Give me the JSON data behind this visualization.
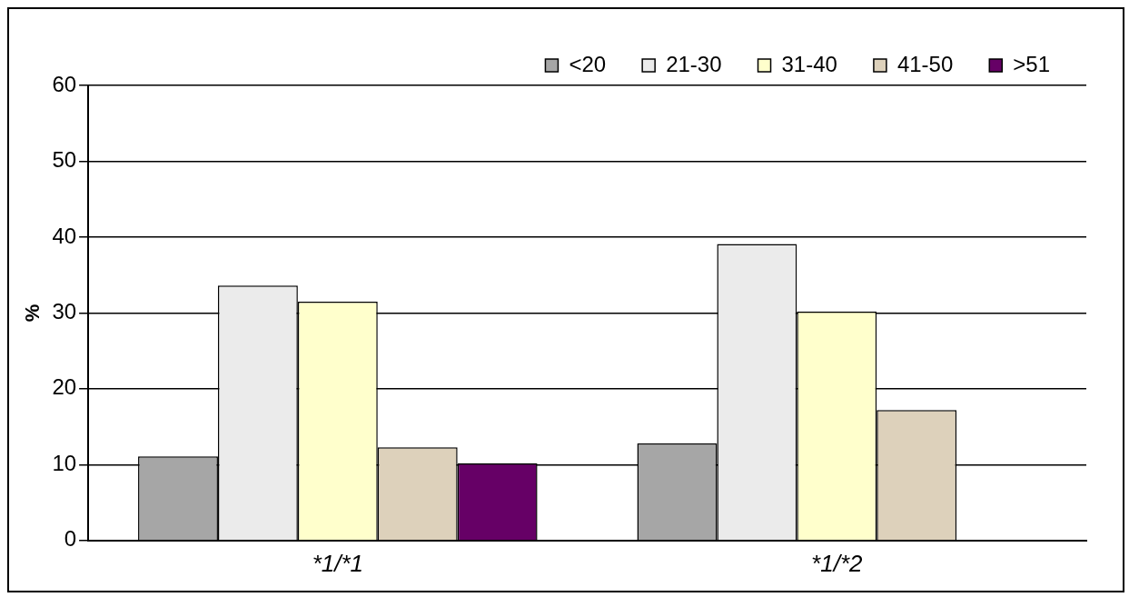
{
  "chart_data": {
    "type": "bar",
    "ylabel": "%",
    "categories": [
      "*1/*1",
      "*1/*2"
    ],
    "series": [
      {
        "name": "<20",
        "color": "#a6a6a6",
        "values": [
          11.1,
          12.8
        ]
      },
      {
        "name": "21-30",
        "color": "#ebebeb",
        "values": [
          33.6,
          39.1
        ]
      },
      {
        "name": "31-40",
        "color": "#ffffcc",
        "values": [
          31.5,
          30.2
        ]
      },
      {
        "name": "41-50",
        "color": "#ddd1bb",
        "values": [
          12.3,
          17.2
        ]
      },
      {
        "name": ">51",
        "color": "#660066",
        "values": [
          10.2,
          null
        ]
      }
    ],
    "ylim": [
      0,
      60
    ],
    "yticks": [
      0,
      10,
      20,
      30,
      40,
      50,
      60
    ],
    "grid": "y",
    "legend": "top right"
  }
}
